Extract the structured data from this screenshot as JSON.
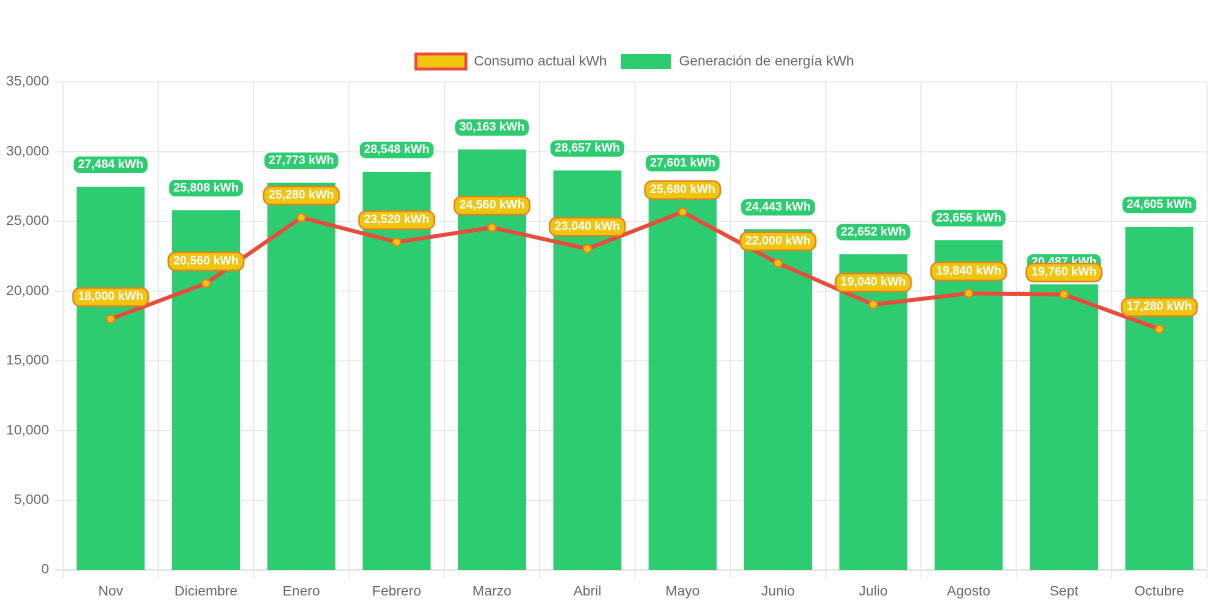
{
  "chart_data": {
    "type": "bar",
    "categories": [
      "Nov",
      "Diciembre",
      "Enero",
      "Febrero",
      "Marzo",
      "Abril",
      "Mayo",
      "Junio",
      "Julio",
      "Agosto",
      "Sept",
      "Octubre"
    ],
    "series": [
      {
        "name": "Consumo actual kWh",
        "type": "line",
        "color": "#e74c3c",
        "point_color": "#f1c40f",
        "values": [
          18000,
          20560,
          25280,
          23520,
          24560,
          23040,
          25680,
          22000,
          19040,
          19840,
          19760,
          17280
        ],
        "value_labels": [
          "18,000 kWh",
          "20,560 kWh",
          "25,280 kWh",
          "23,520 kWh",
          "24,560 kWh",
          "23,040 kWh",
          "25,680 kWh",
          "22,000 kWh",
          "19,040 kWh",
          "19,840 kWh",
          "19,760 kWh",
          "17,280 kWh"
        ]
      },
      {
        "name": "Generación de energía kWh",
        "type": "bar",
        "color": "#2ecc71",
        "values": [
          27484,
          25808,
          27773,
          28548,
          30163,
          28657,
          27601,
          24443,
          22652,
          23656,
          20487,
          24605
        ],
        "value_labels": [
          "27,484 kWh",
          "25,808 kWh",
          "27,773 kWh",
          "28,548 kWh",
          "30,163 kWh",
          "28,657 kWh",
          "27,601 kWh",
          "24,443 kWh",
          "22,652 kWh",
          "23,656 kWh",
          "20,487 kWh",
          "24,605 kWh"
        ]
      }
    ],
    "ylim": [
      0,
      35000
    ],
    "yticks": [
      0,
      {
        "value": 5000,
        "label": "5,000"
      },
      {
        "value": 10000,
        "label": "10,000"
      },
      {
        "value": 15000,
        "label": "15,000"
      },
      {
        "value": 20000,
        "label": "20,000"
      },
      {
        "value": 25000,
        "label": "25,000"
      },
      {
        "value": 30000,
        "label": "30,000"
      },
      {
        "value": 35000,
        "label": "35,000"
      }
    ],
    "grid": true,
    "legend": "top"
  }
}
